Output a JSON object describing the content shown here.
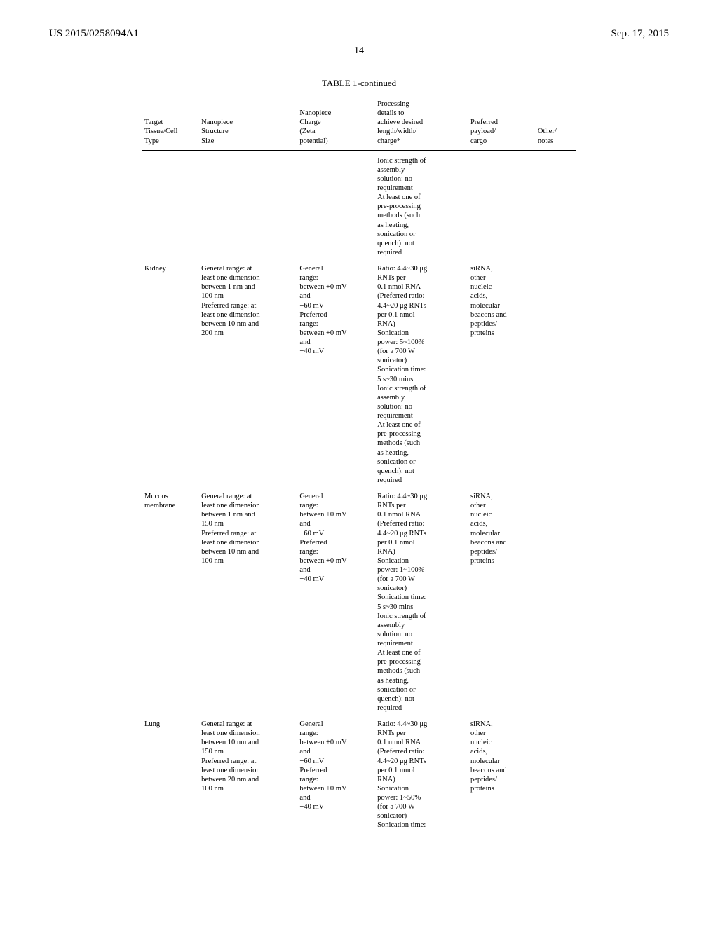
{
  "header": {
    "patent_number": "US 2015/0258094A1",
    "date": "Sep. 17, 2015",
    "page_number": "14"
  },
  "table": {
    "title": "TABLE 1-continued",
    "columns": {
      "c1": "Target\nTissue/Cell\nType",
      "c2": "Nanopiece\nStructure\nSize",
      "c3": "Nanopiece\nCharge\n(Zeta\npotential)",
      "c4": "Processing\ndetails to\nachieve desired\nlength/width/\ncharge*",
      "c5": "Preferred\npayload/\ncargo",
      "c6": "Other/\nnotes"
    },
    "rows": {
      "pre": {
        "c1": "",
        "c2": "",
        "c3": "",
        "c4": "Ionic strength of\nassembly\nsolution: no\nrequirement\nAt least one of\npre-processing\nmethods (such\nas heating,\nsonication or\nquench): not\nrequired",
        "c5": "",
        "c6": ""
      },
      "kidney": {
        "c1": "Kidney",
        "c2": "General range: at\nleast one dimension\nbetween 1 nm and\n100 nm\nPreferred range: at\nleast one dimension\nbetween 10 nm and\n200 nm",
        "c3": "General\nrange:\nbetween +0 mV\nand\n+60 mV\nPreferred\nrange:\nbetween +0 mV\nand\n+40 mV",
        "c4": "Ratio: 4.4~30 μg\nRNTs per\n0.1 nmol RNA\n(Preferred ratio:\n4.4~20 μg RNTs\nper 0.1 nmol\nRNA)\nSonication\npower: 5~100%\n(for a 700 W\nsonicator)\nSonication time:\n5 s~30 mins\nIonic strength of\nassembly\nsolution: no\nrequirement\nAt least one of\npre-processing\nmethods (such\nas heating,\nsonication or\nquench): not\nrequired",
        "c5": "siRNA,\nother\nnucleic\nacids,\nmolecular\nbeacons and\npeptides/\nproteins",
        "c6": ""
      },
      "mucous": {
        "c1": "Mucous\nmembrane",
        "c2": "General range: at\nleast one dimension\nbetween 1 nm and\n150 nm\nPreferred range: at\nleast one dimension\nbetween 10 nm and\n100 nm",
        "c3": "General\nrange:\nbetween +0 mV\nand\n+60 mV\nPreferred\nrange:\nbetween +0 mV\nand\n+40 mV",
        "c4": "Ratio: 4.4~30 μg\nRNTs per\n0.1 nmol RNA\n(Preferred ratio:\n4.4~20 μg RNTs\nper 0.1 nmol\nRNA)\nSonication\npower: 1~100%\n(for a 700 W\nsonicator)\nSonication time:\n5 s~30 mins\nIonic strength of\nassembly\nsolution: no\nrequirement\nAt least one of\npre-processing\nmethods (such\nas heating,\nsonication or\nquench): not\nrequired",
        "c5": "siRNA,\nother\nnucleic\nacids,\nmolecular\nbeacons and\npeptides/\nproteins",
        "c6": ""
      },
      "lung": {
        "c1": "Lung",
        "c2": "General range: at\nleast one dimension\nbetween 10 nm and\n150 nm\nPreferred range: at\nleast one dimension\nbetween 20 nm and\n100 nm",
        "c3": "General\nrange:\nbetween +0 mV\nand\n+60 mV\nPreferred\nrange:\nbetween +0 mV\nand\n+40 mV",
        "c4": "Ratio: 4.4~30 μg\nRNTs per\n0.1 nmol RNA\n(Preferred ratio:\n4.4~20 μg RNTs\nper 0.1 nmol\nRNA)\nSonication\npower: 1~50%\n(for a 700 W\nsonicator)\nSonication time:",
        "c5": "siRNA,\nother\nnucleic\nacids,\nmolecular\nbeacons and\npeptides/\nproteins",
        "c6": ""
      }
    }
  }
}
